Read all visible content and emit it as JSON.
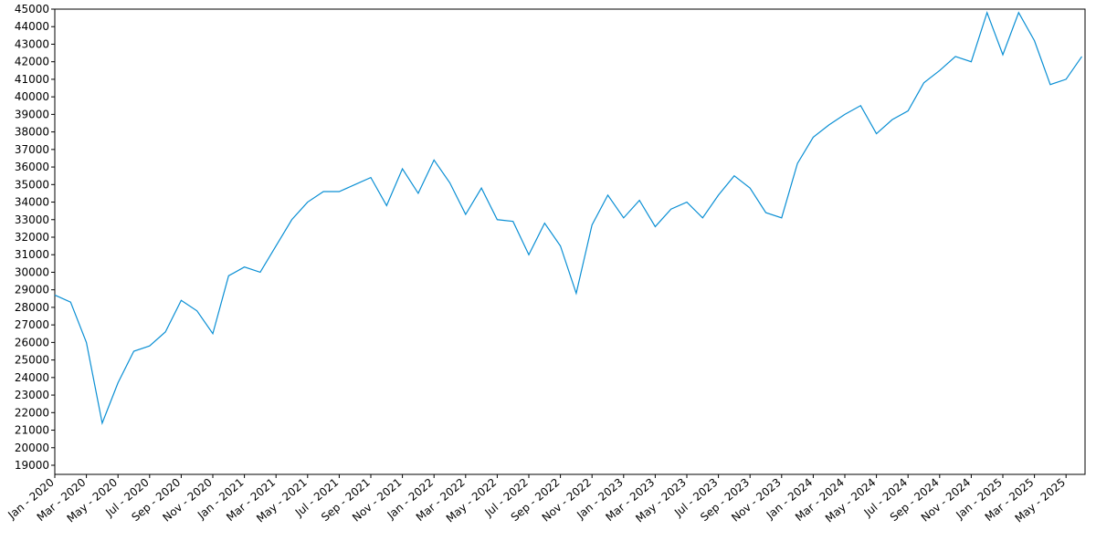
{
  "chart_data": {
    "type": "line",
    "color": "#0a8fd4",
    "categories": [
      "Jan - 2020",
      null,
      "Mar - 2020",
      null,
      "May - 2020",
      null,
      "Jul - 2020",
      null,
      "Sep - 2020",
      null,
      "Nov - 2020",
      null,
      "Jan - 2021",
      null,
      "Mar - 2021",
      null,
      "May - 2021",
      null,
      "Jul - 2021",
      null,
      "Sep - 2021",
      null,
      "Nov - 2021",
      null,
      "Jan - 2022",
      null,
      "Mar - 2022",
      null,
      "May - 2022",
      null,
      "Jul - 2022",
      null,
      "Sep - 2022",
      null,
      "Nov - 2022",
      null,
      "Jan - 2023",
      null,
      "Mar - 2023",
      null,
      "May - 2023",
      null,
      "Jul - 2023",
      null,
      "Sep - 2023",
      null,
      "Nov - 2023",
      null,
      "Jan - 2024",
      null,
      "Mar - 2024",
      null,
      "May - 2024",
      null,
      "Jul - 2024",
      null,
      "Sep - 2024",
      null,
      "Nov - 2024",
      null,
      "Jan - 2025",
      null,
      "Mar - 2025",
      null,
      "May - 2025",
      null
    ],
    "values": [
      28700,
      28300,
      26000,
      21400,
      23700,
      25500,
      25800,
      26600,
      28400,
      27800,
      26500,
      29800,
      30300,
      30000,
      31500,
      33000,
      34000,
      34600,
      34600,
      35000,
      35400,
      33800,
      35900,
      34500,
      36400,
      35100,
      33300,
      34800,
      33000,
      32900,
      31000,
      32800,
      31500,
      28800,
      32700,
      34400,
      33100,
      34100,
      32600,
      33600,
      34000,
      33100,
      34400,
      35500,
      34800,
      33400,
      33100,
      36200,
      37700,
      38400,
      39000,
      39500,
      37900,
      38700,
      39200,
      40800,
      41500,
      42300,
      42000,
      44800,
      42400,
      44800,
      43200,
      40700,
      41000,
      42300
    ],
    "ylim": [
      18480,
      45000
    ],
    "yticks": [
      19000,
      20000,
      21000,
      22000,
      23000,
      24000,
      25000,
      26000,
      27000,
      28000,
      29000,
      30000,
      31000,
      32000,
      33000,
      34000,
      35000,
      36000,
      37000,
      38000,
      39000,
      40000,
      41000,
      42000,
      43000,
      44000,
      45000
    ]
  }
}
